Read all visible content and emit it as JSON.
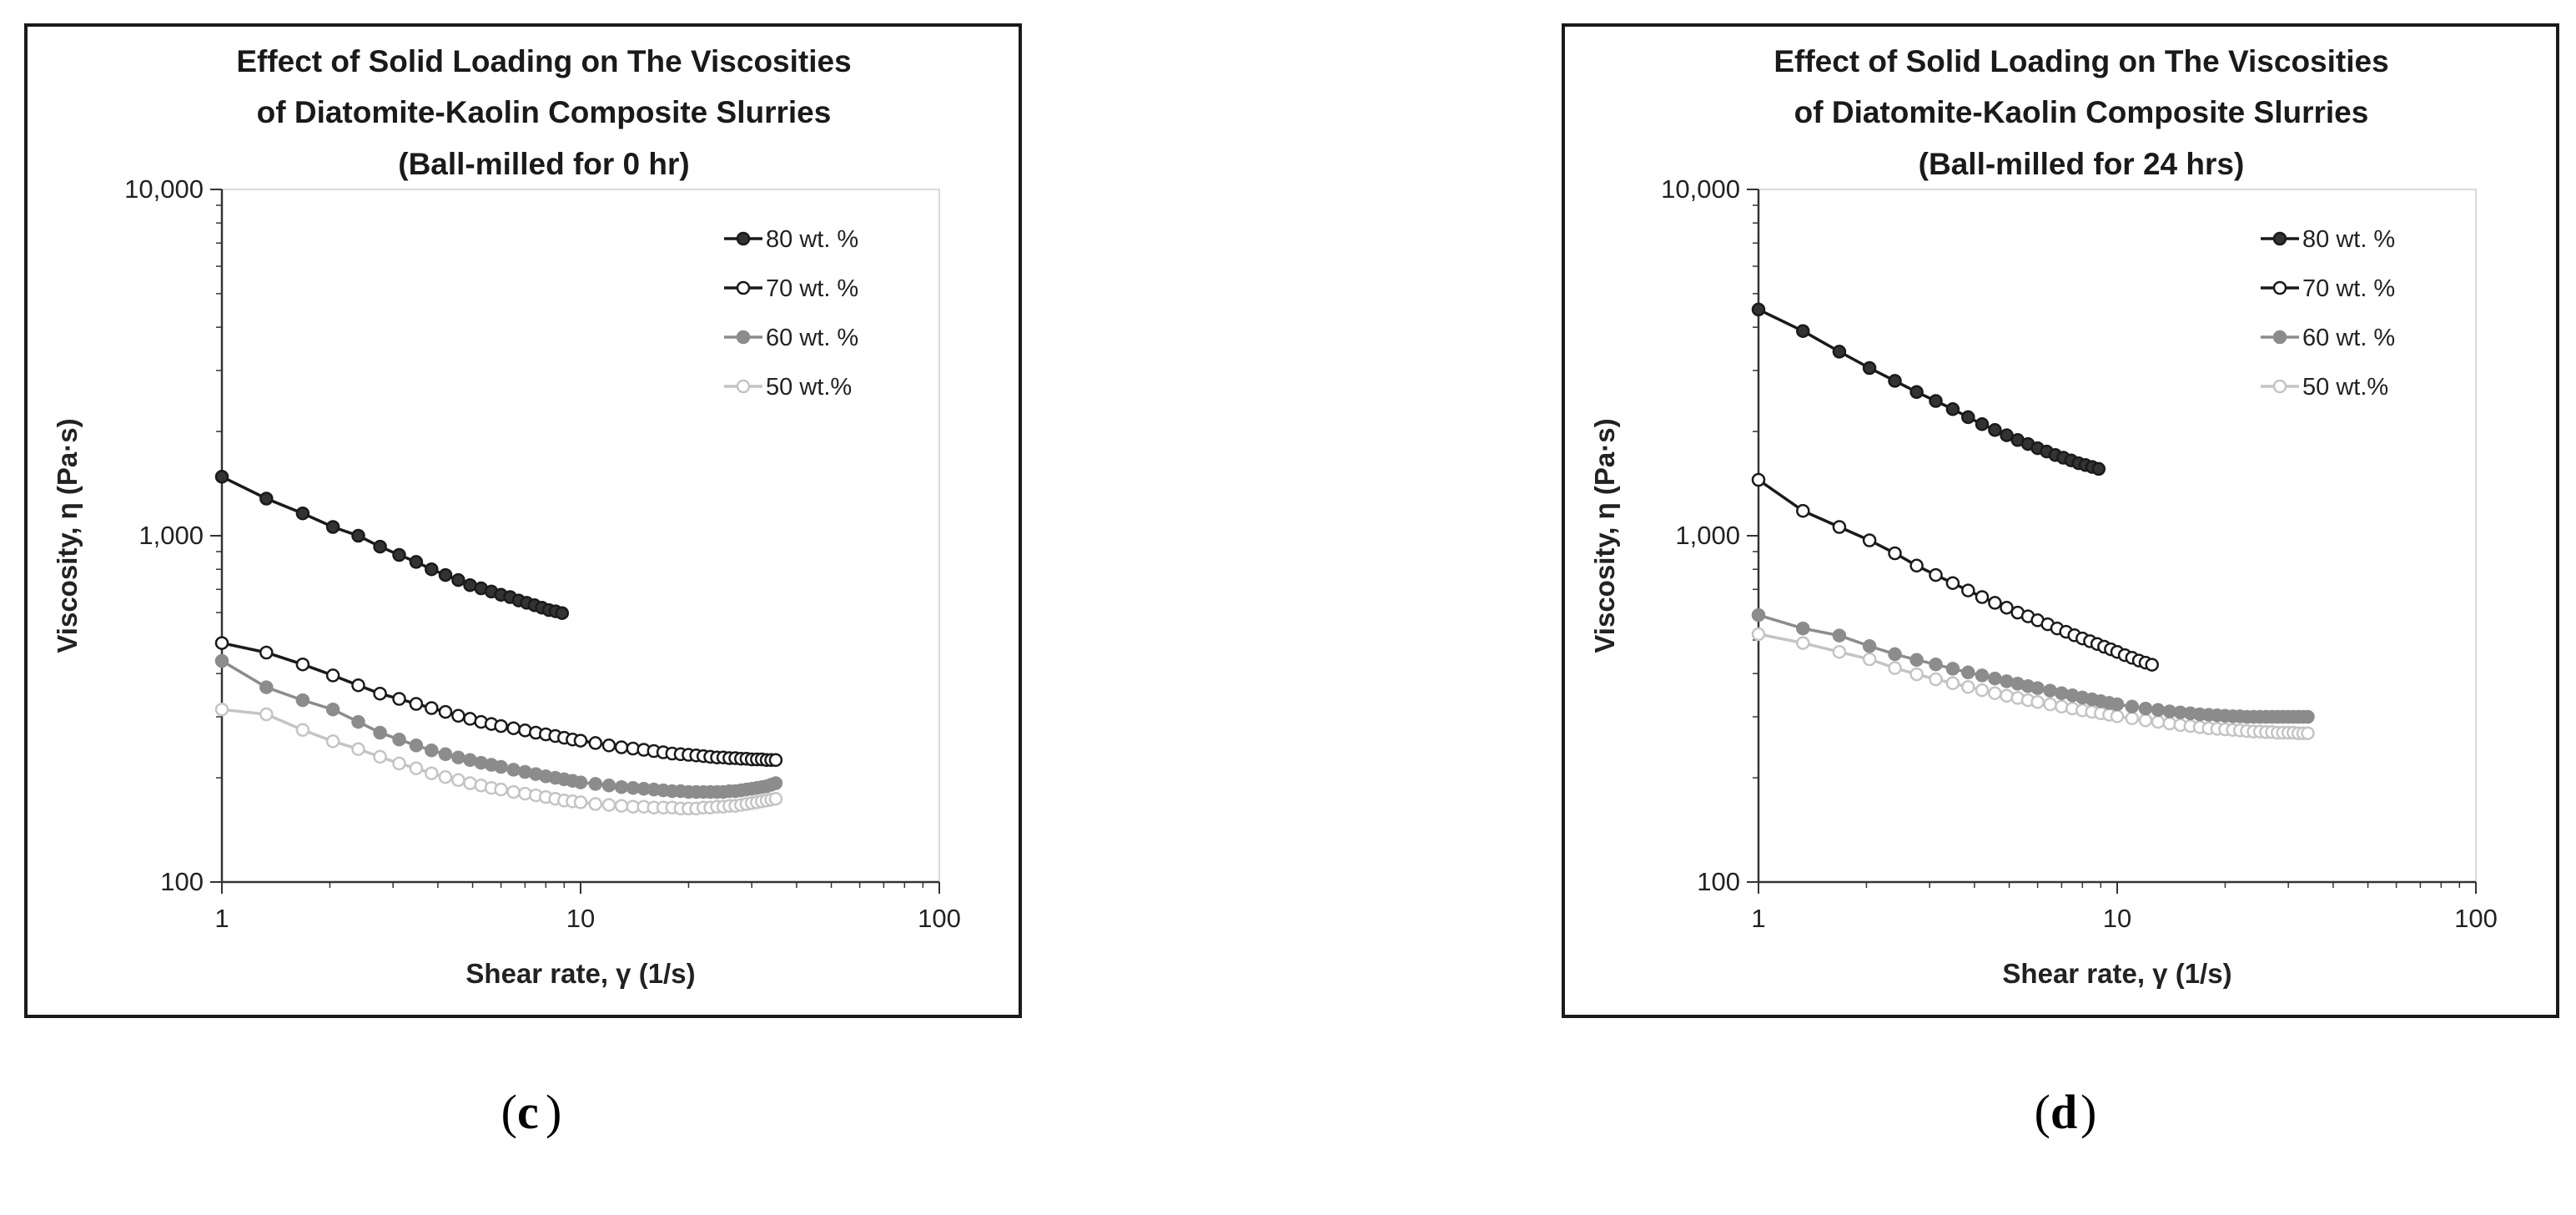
{
  "chart_data": [
    {
      "type": "line",
      "panel": "c",
      "title_lines": [
        "Effect of Solid Loading on The Viscosities",
        "of Diatomite-Kaolin Composite Slurries",
        "(Ball-milled for 0 hr)"
      ],
      "xlabel": "Shear rate, γ (1/s)",
      "ylabel": "Viscosity, η (Pa·s)",
      "xscale": "log",
      "yscale": "log",
      "xlim": [
        1,
        100
      ],
      "ylim": [
        100,
        10000
      ],
      "xticks": [
        1,
        10,
        100
      ],
      "xtick_labels": [
        "1",
        "10",
        "100"
      ],
      "yticks": [
        100,
        1000,
        10000
      ],
      "ytick_labels": [
        "100",
        "1,000",
        "10,000"
      ],
      "legend_position": "top-right",
      "series": [
        {
          "name": "80 wt. %",
          "color": "#2b2b2b",
          "marker_fill": "#333333",
          "line_color": "#1a1a1a",
          "x": [
            1,
            1.33,
            1.68,
            2.04,
            2.4,
            2.76,
            3.12,
            3.48,
            3.84,
            4.2,
            4.56,
            4.92,
            5.28,
            5.64,
            6.0,
            6.36,
            6.72,
            7.08,
            7.44,
            7.8,
            8.16,
            8.52,
            8.88
          ],
          "y": [
            1480,
            1280,
            1160,
            1060,
            1000,
            930,
            880,
            840,
            800,
            770,
            745,
            720,
            705,
            690,
            675,
            665,
            650,
            640,
            630,
            620,
            610,
            605,
            598
          ]
        },
        {
          "name": "70 wt. %",
          "color": "#1a1a1a",
          "marker_fill": "#ffffff",
          "line_color": "#1a1a1a",
          "x": [
            1,
            1.33,
            1.68,
            2.04,
            2.4,
            2.76,
            3.12,
            3.48,
            3.84,
            4.2,
            4.56,
            4.92,
            5.28,
            5.64,
            6.0,
            6.5,
            7.0,
            7.5,
            8.0,
            8.5,
            9.0,
            9.5,
            10,
            11,
            12,
            13,
            14,
            15,
            16,
            17,
            18,
            19,
            20,
            21,
            22,
            23,
            24,
            25,
            26,
            27,
            28,
            29,
            30,
            31,
            32,
            33,
            34,
            35
          ],
          "y": [
            490,
            460,
            425,
            395,
            370,
            350,
            338,
            327,
            318,
            310,
            302,
            296,
            290,
            286,
            282,
            278,
            274,
            270,
            267,
            264,
            261,
            258,
            256,
            252,
            248,
            245,
            243,
            241,
            239,
            237,
            235,
            234,
            233,
            232,
            231,
            230,
            229,
            229,
            228,
            228,
            227,
            227,
            226,
            226,
            226,
            225,
            225,
            225
          ]
        },
        {
          "name": "60 wt. %",
          "color": "#8c8c8c",
          "marker_fill": "#8c8c8c",
          "line_color": "#8c8c8c",
          "x": [
            1,
            1.33,
            1.68,
            2.04,
            2.4,
            2.76,
            3.12,
            3.48,
            3.84,
            4.2,
            4.56,
            4.92,
            5.28,
            5.64,
            6.0,
            6.5,
            7.0,
            7.5,
            8.0,
            8.5,
            9.0,
            9.5,
            10,
            11,
            12,
            13,
            14,
            15,
            16,
            17,
            18,
            19,
            20,
            21,
            22,
            23,
            24,
            25,
            26,
            27,
            28,
            29,
            30,
            31,
            32,
            33,
            34,
            35
          ],
          "y": [
            435,
            365,
            335,
            315,
            290,
            270,
            258,
            248,
            240,
            234,
            229,
            225,
            221,
            218,
            215,
            211,
            208,
            205,
            202,
            200,
            198,
            196,
            194,
            192,
            190,
            188,
            187,
            186,
            185,
            184,
            183,
            183,
            182,
            182,
            182,
            182,
            182,
            182,
            183,
            183,
            184,
            185,
            186,
            187,
            188,
            189,
            191,
            193
          ]
        },
        {
          "name": "50 wt.%",
          "color": "#c4c4c4",
          "marker_fill": "#ffffff",
          "line_color": "#c4c4c4",
          "x": [
            1,
            1.33,
            1.68,
            2.04,
            2.4,
            2.76,
            3.12,
            3.48,
            3.84,
            4.2,
            4.56,
            4.92,
            5.28,
            5.64,
            6.0,
            6.5,
            7.0,
            7.5,
            8.0,
            8.5,
            9.0,
            9.5,
            10,
            11,
            12,
            13,
            14,
            15,
            16,
            17,
            18,
            19,
            20,
            21,
            22,
            23,
            24,
            25,
            26,
            27,
            28,
            29,
            30,
            31,
            32,
            33,
            34,
            35
          ],
          "y": [
            315,
            305,
            275,
            255,
            242,
            230,
            220,
            213,
            206,
            201,
            197,
            193,
            190,
            187,
            185,
            182,
            180,
            178,
            176,
            174,
            172,
            171,
            170,
            168,
            167,
            166,
            165,
            165,
            164,
            164,
            164,
            163,
            163,
            163,
            164,
            164,
            165,
            165,
            166,
            166,
            167,
            168,
            169,
            170,
            171,
            172,
            173,
            174
          ]
        }
      ]
    },
    {
      "type": "line",
      "panel": "d",
      "title_lines": [
        "Effect of Solid Loading on The Viscosities",
        "of Diatomite-Kaolin Composite Slurries",
        "(Ball-milled for 24 hrs)"
      ],
      "xlabel": "Shear rate, γ (1/s)",
      "ylabel": "Viscosity, η (Pa·s)",
      "xscale": "log",
      "yscale": "log",
      "xlim": [
        1,
        100
      ],
      "ylim": [
        100,
        10000
      ],
      "xticks": [
        1,
        10,
        100
      ],
      "xtick_labels": [
        "1",
        "10",
        "100"
      ],
      "yticks": [
        100,
        1000,
        10000
      ],
      "ytick_labels": [
        "100",
        "1,000",
        "10,000"
      ],
      "legend_position": "top-right",
      "series": [
        {
          "name": "80 wt. %",
          "color": "#2b2b2b",
          "marker_fill": "#333333",
          "line_color": "#1a1a1a",
          "x": [
            1,
            1.33,
            1.68,
            2.04,
            2.4,
            2.76,
            3.12,
            3.48,
            3.84,
            4.2,
            4.56,
            4.92,
            5.28,
            5.64,
            6.0,
            6.36,
            6.72,
            7.08,
            7.44,
            7.8,
            8.16,
            8.52,
            8.88
          ],
          "y": [
            4500,
            3900,
            3400,
            3050,
            2800,
            2600,
            2450,
            2320,
            2200,
            2100,
            2020,
            1950,
            1890,
            1840,
            1790,
            1750,
            1710,
            1680,
            1650,
            1620,
            1600,
            1580,
            1560
          ]
        },
        {
          "name": "70 wt. %",
          "color": "#1a1a1a",
          "marker_fill": "#ffffff",
          "line_color": "#1a1a1a",
          "x": [
            1,
            1.33,
            1.68,
            2.04,
            2.4,
            2.76,
            3.12,
            3.48,
            3.84,
            4.2,
            4.56,
            4.92,
            5.28,
            5.64,
            6.0,
            6.4,
            6.8,
            7.2,
            7.6,
            8.0,
            8.4,
            8.8,
            9.2,
            9.6,
            10,
            10.5,
            11,
            11.5,
            12,
            12.5
          ],
          "y": [
            1450,
            1180,
            1060,
            970,
            890,
            820,
            770,
            730,
            695,
            665,
            640,
            620,
            600,
            585,
            570,
            555,
            540,
            528,
            516,
            505,
            496,
            487,
            478,
            470,
            462,
            452,
            444,
            436,
            430,
            424
          ]
        },
        {
          "name": "60 wt. %",
          "color": "#8c8c8c",
          "marker_fill": "#8c8c8c",
          "line_color": "#8c8c8c",
          "x": [
            1,
            1.33,
            1.68,
            2.04,
            2.4,
            2.76,
            3.12,
            3.48,
            3.84,
            4.2,
            4.56,
            4.92,
            5.28,
            5.64,
            6.0,
            6.5,
            7.0,
            7.5,
            8.0,
            8.5,
            9.0,
            9.5,
            10,
            11,
            12,
            13,
            14,
            15,
            16,
            17,
            18,
            19,
            20,
            21,
            22,
            23,
            24,
            25,
            26,
            27,
            28,
            29,
            30,
            31,
            32,
            33,
            34
          ],
          "y": [
            590,
            540,
            515,
            480,
            455,
            438,
            425,
            413,
            403,
            395,
            387,
            380,
            374,
            368,
            363,
            357,
            351,
            346,
            341,
            337,
            333,
            329,
            326,
            321,
            317,
            314,
            311,
            309,
            307,
            305,
            304,
            303,
            302,
            301,
            301,
            300,
            300,
            300,
            300,
            300,
            300,
            300,
            300,
            300,
            300,
            300,
            300
          ]
        },
        {
          "name": "50 wt.%",
          "color": "#c4c4c4",
          "marker_fill": "#ffffff",
          "line_color": "#c4c4c4",
          "x": [
            1,
            1.33,
            1.68,
            2.04,
            2.4,
            2.76,
            3.12,
            3.48,
            3.84,
            4.2,
            4.56,
            4.92,
            5.28,
            5.64,
            6.0,
            6.5,
            7.0,
            7.5,
            8.0,
            8.5,
            9.0,
            9.5,
            10,
            11,
            12,
            13,
            14,
            15,
            16,
            17,
            18,
            19,
            20,
            21,
            22,
            23,
            24,
            25,
            26,
            27,
            28,
            29,
            30,
            31,
            32,
            33,
            34
          ],
          "y": [
            520,
            490,
            462,
            440,
            415,
            398,
            385,
            375,
            366,
            358,
            351,
            345,
            340,
            335,
            331,
            326,
            321,
            317,
            313,
            310,
            307,
            304,
            301,
            297,
            293,
            290,
            287,
            284,
            282,
            280,
            278,
            277,
            276,
            275,
            274,
            273,
            272,
            272,
            271,
            271,
            270,
            270,
            270,
            270,
            269,
            269,
            269
          ]
        }
      ]
    }
  ],
  "captions": {
    "c": "c",
    "d": "d"
  }
}
